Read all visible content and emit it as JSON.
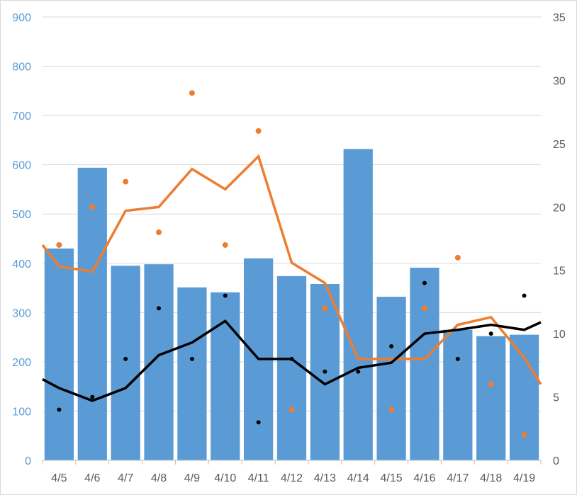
{
  "chart_data": {
    "type": "bar",
    "title": "",
    "xlabel": "",
    "ylabel": "",
    "categories": [
      "4/5",
      "4/6",
      "4/7",
      "4/8",
      "4/9",
      "4/10",
      "4/11",
      "4/12",
      "4/13",
      "4/14",
      "4/15",
      "4/16",
      "4/17",
      "4/18",
      "4/19"
    ],
    "y_left": {
      "ylim": [
        0,
        900
      ],
      "ticks": [
        0,
        100,
        200,
        300,
        400,
        500,
        600,
        700,
        800,
        900
      ],
      "tick_color": "#5b9bd5"
    },
    "y_right": {
      "ylim": [
        0,
        35
      ],
      "ticks": [
        0,
        5,
        10,
        15,
        20,
        25,
        30,
        35
      ],
      "tick_color": "#595959"
    },
    "grid": true,
    "legend": "none",
    "series": [
      {
        "type": "bar",
        "axis": "left",
        "color": "#5b9bd5",
        "values": [
          430,
          594,
          395,
          398,
          351,
          341,
          410,
          374,
          358,
          632,
          332,
          391,
          265,
          252,
          255
        ]
      },
      {
        "type": "line",
        "axis": "right",
        "color": "#ed7d31",
        "start": 17,
        "values": [
          15.3,
          14.9,
          19.7,
          20,
          23,
          21.4,
          24,
          15.6,
          14,
          8,
          8,
          8,
          10.7,
          11.3,
          8.1
        ],
        "end": 6
      },
      {
        "type": "line",
        "axis": "right",
        "color": "#000000",
        "start": 6.4,
        "values": [
          5.7,
          4.7,
          5.7,
          8.3,
          9.3,
          11,
          8,
          8,
          6,
          7.3,
          7.7,
          10,
          10.3,
          10.7,
          10.3
        ],
        "end": 10.9
      },
      {
        "type": "scatter",
        "axis": "right",
        "color": "#ed7d31",
        "values": [
          17,
          20,
          22,
          18,
          29,
          17,
          26,
          4,
          12,
          null,
          4,
          12,
          16,
          6,
          2
        ]
      },
      {
        "type": "scatter",
        "axis": "right",
        "color": "#000000",
        "values": [
          4,
          5,
          8,
          12,
          8,
          13,
          3,
          8,
          7,
          7,
          9,
          14,
          8,
          10,
          13
        ]
      }
    ]
  }
}
